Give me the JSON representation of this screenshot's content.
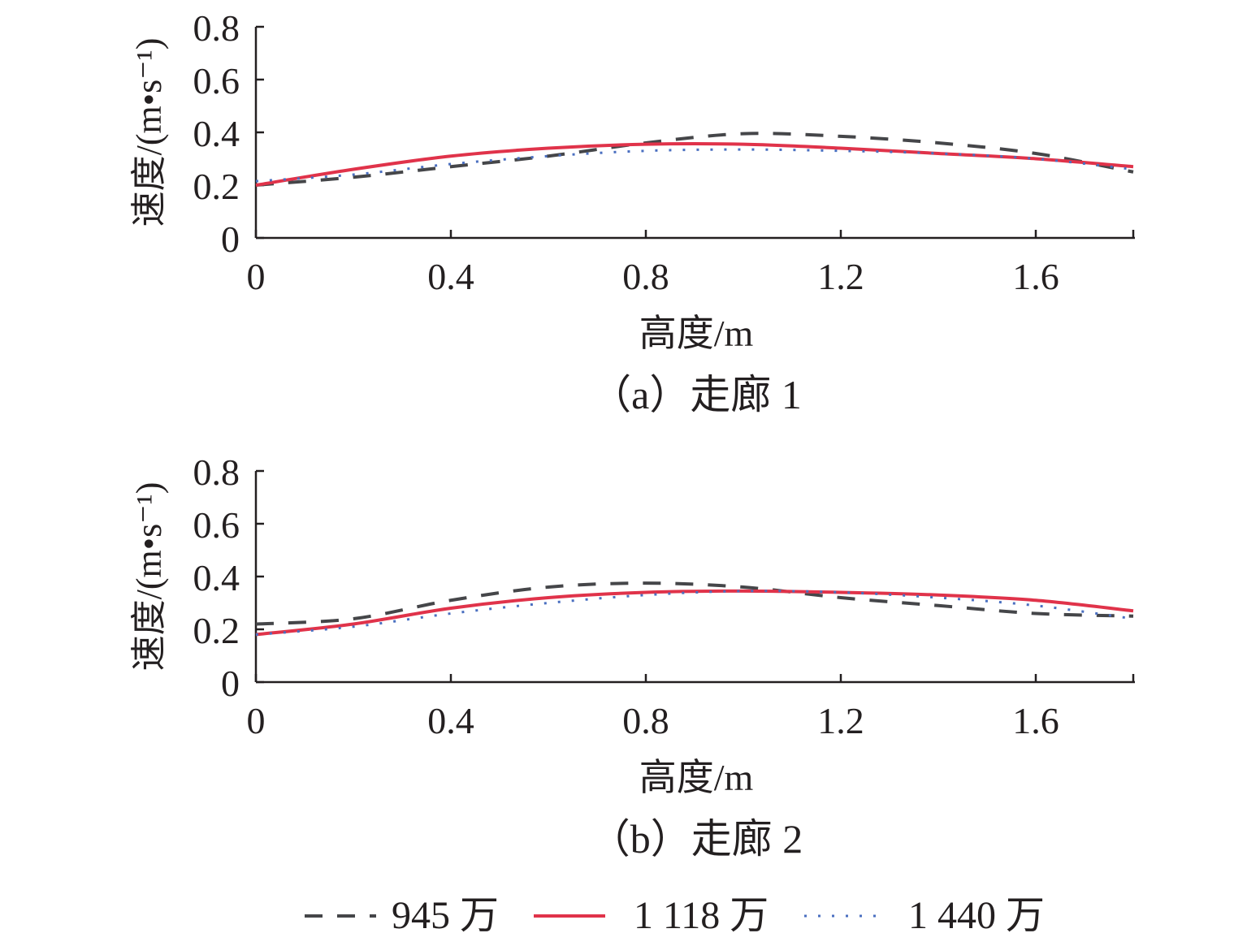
{
  "chart_data": [
    {
      "type": "line",
      "caption": "（a）走廊 1",
      "xlabel": "高度/m",
      "ylabel": "速度/(m•s⁻¹)",
      "xlim": [
        0,
        1.8
      ],
      "ylim": [
        0,
        0.8
      ],
      "xticks": [
        "0",
        "0.4",
        "0.8",
        "1.2",
        "1.6"
      ],
      "yticks": [
        "0",
        "0.2",
        "0.4",
        "0.6",
        "0.8"
      ],
      "x": [
        0,
        0.2,
        0.4,
        0.6,
        0.8,
        1.0,
        1.2,
        1.4,
        1.6,
        1.8
      ],
      "series": [
        {
          "name": "945 万",
          "values": [
            0.2,
            0.23,
            0.27,
            0.31,
            0.36,
            0.395,
            0.385,
            0.36,
            0.32,
            0.25
          ]
        },
        {
          "name": "1 118 万",
          "values": [
            0.2,
            0.26,
            0.31,
            0.34,
            0.355,
            0.355,
            0.34,
            0.32,
            0.3,
            0.27
          ]
        },
        {
          "name": "1 440 万",
          "values": [
            0.215,
            0.24,
            0.28,
            0.31,
            0.33,
            0.335,
            0.33,
            0.32,
            0.3,
            0.26
          ]
        }
      ]
    },
    {
      "type": "line",
      "caption": "（b）走廊 2",
      "xlabel": "高度/m",
      "ylabel": "速度/(m•s⁻¹)",
      "xlim": [
        0,
        1.8
      ],
      "ylim": [
        0,
        0.8
      ],
      "xticks": [
        "0",
        "0.4",
        "0.8",
        "1.2",
        "1.6"
      ],
      "yticks": [
        "0",
        "0.2",
        "0.4",
        "0.6",
        "0.8"
      ],
      "x": [
        0,
        0.2,
        0.4,
        0.6,
        0.8,
        1.0,
        1.2,
        1.4,
        1.6,
        1.8
      ],
      "series": [
        {
          "name": "945 万",
          "values": [
            0.22,
            0.24,
            0.31,
            0.36,
            0.375,
            0.36,
            0.32,
            0.29,
            0.26,
            0.25
          ]
        },
        {
          "name": "1 118 万",
          "values": [
            0.18,
            0.22,
            0.28,
            0.32,
            0.34,
            0.345,
            0.34,
            0.33,
            0.31,
            0.27
          ]
        },
        {
          "name": "1 440 万",
          "values": [
            0.18,
            0.21,
            0.26,
            0.3,
            0.33,
            0.345,
            0.34,
            0.32,
            0.29,
            0.24
          ]
        }
      ]
    }
  ],
  "legend": [
    "945 万",
    "1 118 万",
    "1 440 万"
  ],
  "colors": [
    "#454649",
    "#e0334a",
    "#4a6fc0"
  ]
}
